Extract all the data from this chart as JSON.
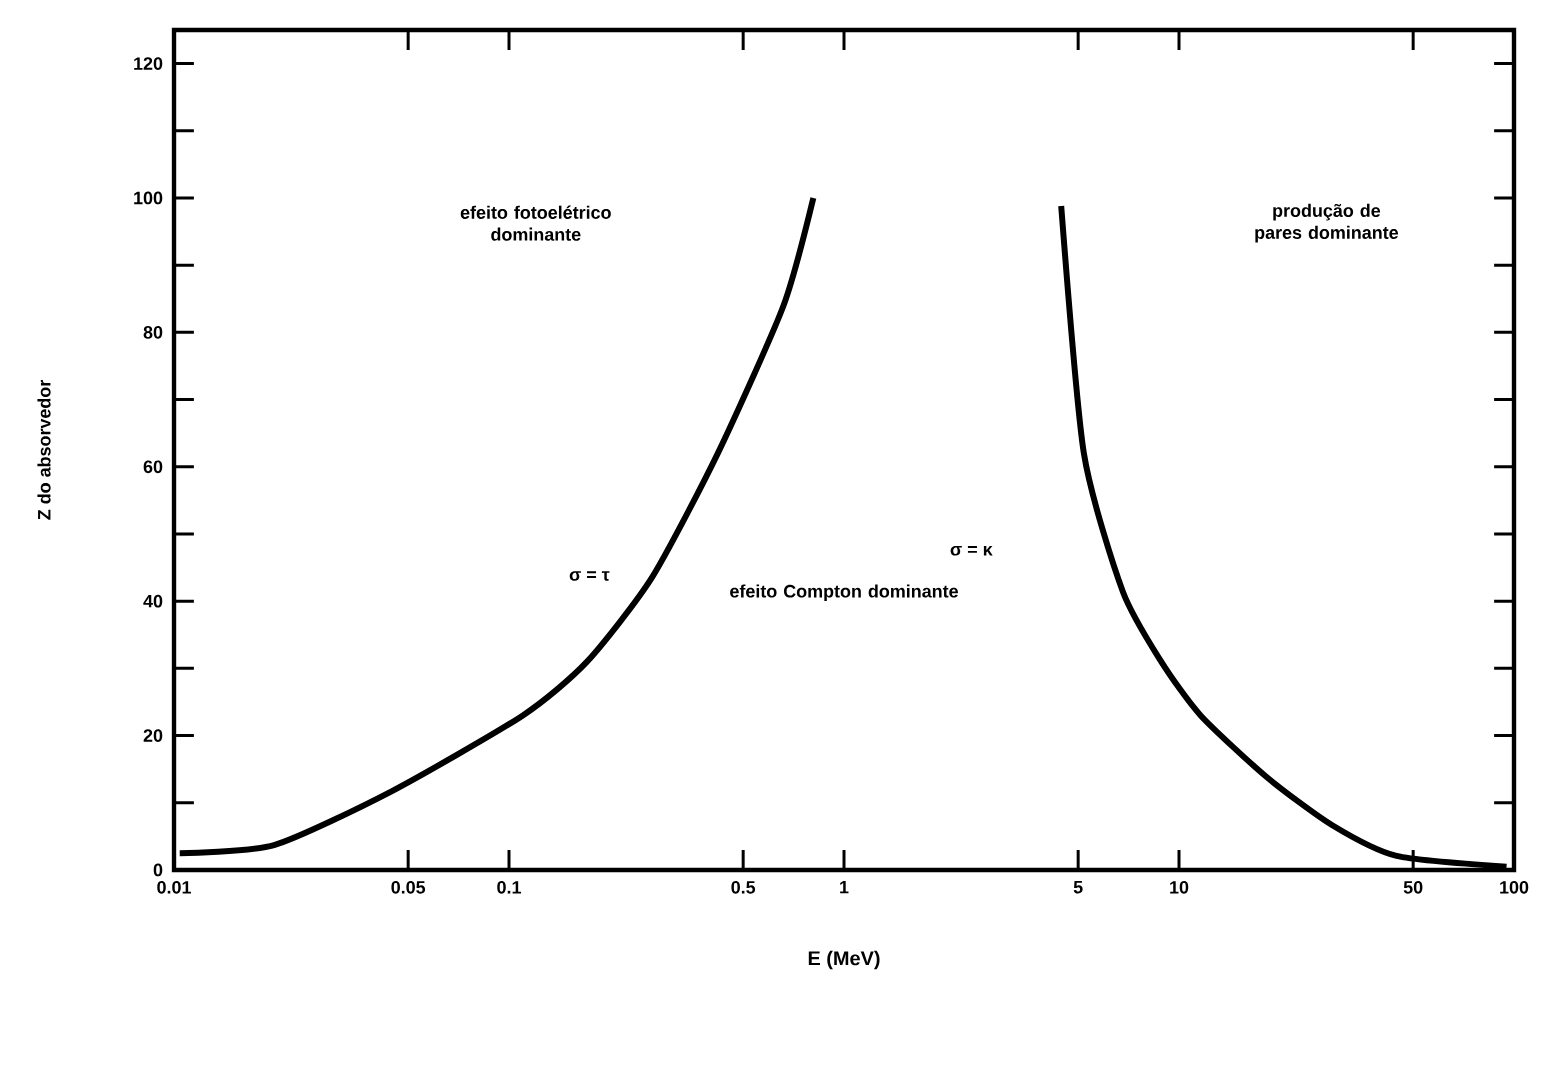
{
  "chart_data": {
    "type": "line",
    "xlabel": "E (MeV)",
    "ylabel": "Z do absorvedor",
    "log": "x",
    "xlim": [
      0.01,
      100
    ],
    "ylim": [
      0,
      125
    ],
    "xticks": [
      {
        "value": 0.01,
        "label": "0.01"
      },
      {
        "value": 0.05,
        "label": "0.05"
      },
      {
        "value": 0.1,
        "label": "0.1"
      },
      {
        "value": 0.5,
        "label": "0.5"
      },
      1,
      5,
      10,
      50,
      100
    ],
    "yticks": [
      0,
      20,
      40,
      60,
      80,
      100,
      120
    ],
    "series": [
      {
        "color": "#000000",
        "x": [
          0.0104,
          0.0199,
          0.0446,
          0.11,
          0.171,
          0.267,
          0.42,
          0.66,
          0.81
        ],
        "values": [
          2.5,
          3.7,
          11.7,
          23,
          31,
          43.5,
          62,
          84,
          100
        ]
      },
      {
        "color": "#000000",
        "x": [
          4.45,
          5.2,
          6.8,
          8.85,
          11.6,
          18.3,
          28.6,
          44.6,
          95
        ],
        "values": [
          98.8,
          62,
          41.4,
          31,
          23,
          13.8,
          6.7,
          2.1,
          0.5
        ]
      }
    ],
    "annotations": [
      "σ = τ",
      "σ = κ",
      "efeito fotoelétrico dominante",
      "efeito Compton dominante",
      "produção de pares dominante"
    ]
  }
}
